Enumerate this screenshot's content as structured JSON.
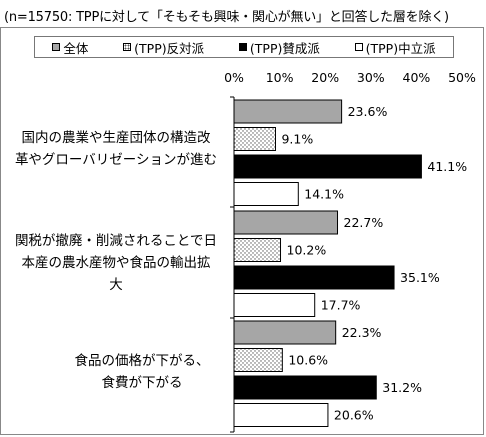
{
  "title": "(n=15750: TPPに対して「そもそも興味・関心が無い」と回答した層を除く)",
  "legend": [
    {
      "label": "全体",
      "pattern": "gray",
      "icon": "filled-square-icon"
    },
    {
      "label": "(TPP)反対派",
      "pattern": "dotted",
      "icon": "dotted-square-icon"
    },
    {
      "label": "(TPP)賛成派",
      "pattern": "black",
      "icon": "black-square-icon"
    },
    {
      "label": "(TPP)中立派",
      "pattern": "white",
      "icon": "white-square-icon"
    }
  ],
  "colors": {
    "gray": "#a6a6a6",
    "black": "#000000",
    "white": "#ffffff",
    "dots": "#555555"
  },
  "chart_data": {
    "type": "bar",
    "orientation": "horizontal",
    "title": "(n=15750: TPPに対して「そもそも興味・関心が無い」と回答した層を除く)",
    "categories": [
      [
        "国内の農業や生産団体の構造改",
        "革やグローバリゼーションが進む"
      ],
      [
        "関税が撤廃・削減されることで日",
        "本産の農水産物や食品の輸出拡",
        "大"
      ],
      [
        "食品の価格が下がる、",
        "食費が下がる"
      ]
    ],
    "series": [
      {
        "name": "全体",
        "values": [
          23.6,
          22.7,
          22.3
        ]
      },
      {
        "name": "(TPP)反対派",
        "values": [
          9.1,
          10.2,
          10.6
        ]
      },
      {
        "name": "(TPP)賛成派",
        "values": [
          41.1,
          35.1,
          31.2
        ]
      },
      {
        "name": "(TPP)中立派",
        "values": [
          14.1,
          17.7,
          20.6
        ]
      }
    ],
    "xlim": [
      0,
      50
    ],
    "xticks": [
      "0%",
      "10%",
      "20%",
      "30%",
      "40%",
      "50%"
    ],
    "value_suffix": "%",
    "grid": false,
    "legend_position": "top"
  }
}
